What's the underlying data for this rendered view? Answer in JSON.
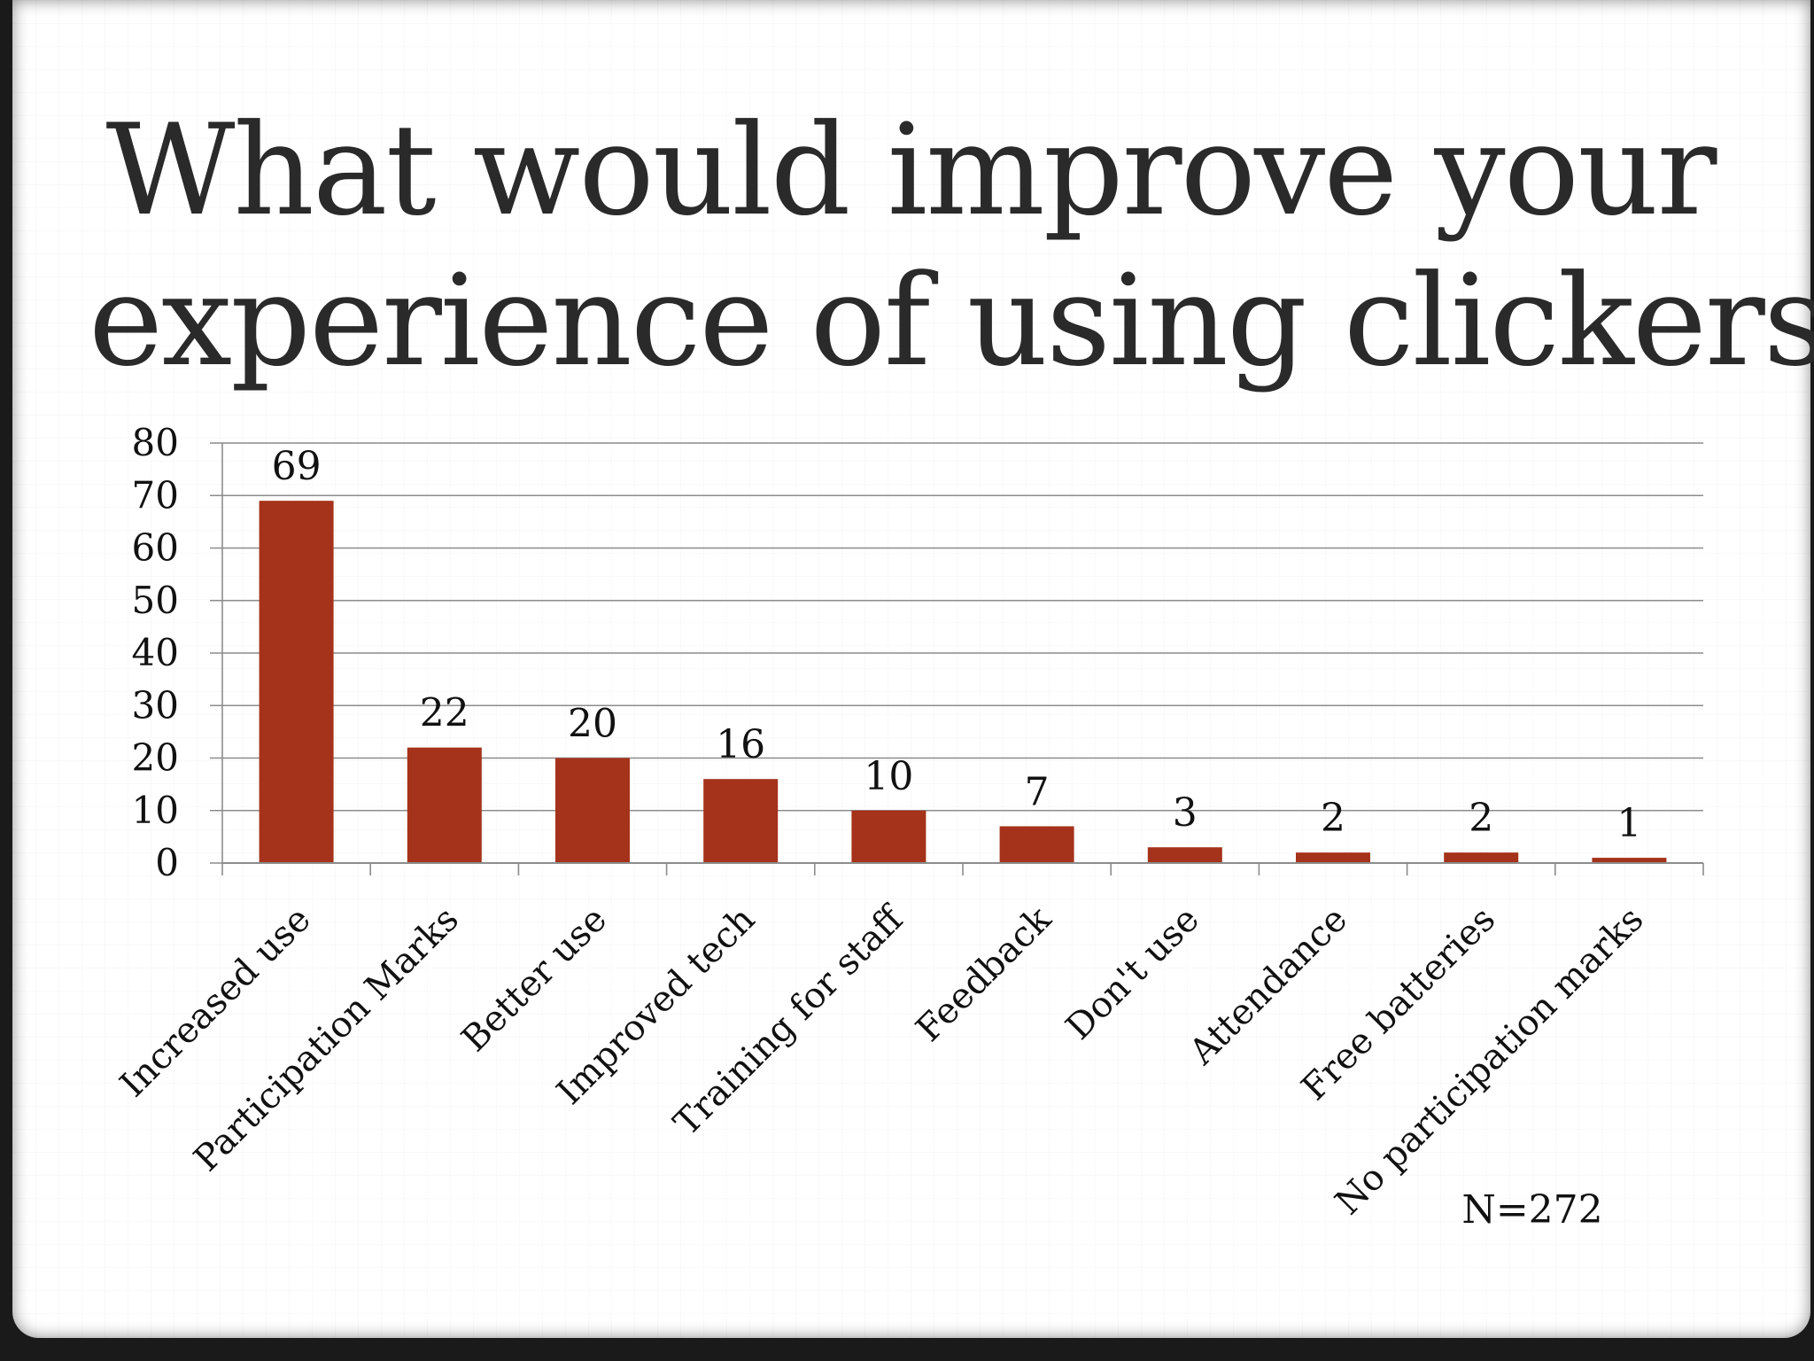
{
  "slide": {
    "title_line1": "What would improve your",
    "title_line2": "experience of using clickers?",
    "note": "N=272"
  },
  "chart_data": {
    "type": "bar",
    "title": "What would improve your experience of using clickers?",
    "categories": [
      "Increased use",
      "Participation Marks",
      "Better use",
      "Improved tech",
      "Training for staff",
      "Feedback",
      "Don't use",
      "Attendance",
      "Free batteries",
      "No participation marks"
    ],
    "values": [
      69,
      22,
      20,
      16,
      10,
      7,
      3,
      2,
      2,
      1
    ],
    "data_labels": [
      "69",
      "22",
      "20",
      "16",
      "10",
      "7",
      "3",
      "2",
      "2",
      "1"
    ],
    "yticks": [
      0,
      10,
      20,
      30,
      40,
      50,
      60,
      70,
      80
    ],
    "ylim": [
      0,
      80
    ],
    "xlabel": "",
    "ylabel": "",
    "grid": true,
    "legend": "none",
    "bar_color": "#a5321a",
    "annotation": "N=272"
  }
}
